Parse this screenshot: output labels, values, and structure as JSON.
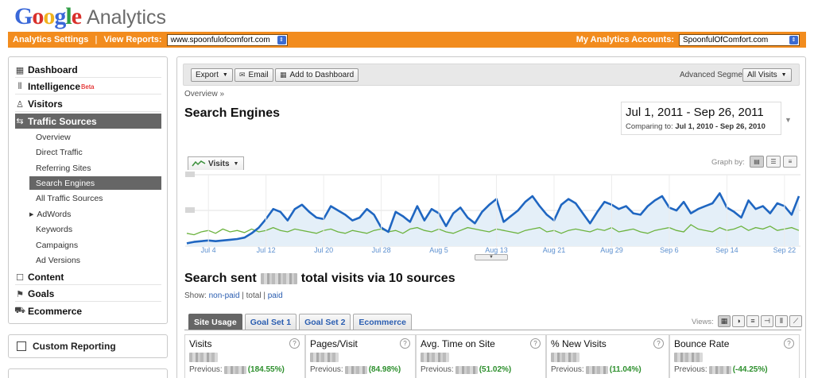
{
  "header": {
    "logo_google": [
      "G",
      "o",
      "o",
      "g",
      "l",
      "e"
    ],
    "logo_colors": [
      "#3a68d8",
      "#d9302b",
      "#f0b21e",
      "#3a68d8",
      "#2f9e44",
      "#d9302b"
    ],
    "logo_product": "Analytics",
    "analytics_settings": "Analytics Settings",
    "view_reports_label": "View Reports:",
    "view_reports_value": "www.spoonfulofcomfort.com",
    "accounts_label": "My Analytics Accounts:",
    "accounts_value": "SpoonfulOfComfort.com"
  },
  "sidebar": {
    "dashboard": "Dashboard",
    "intelligence": "Intelligence",
    "beta": "Beta",
    "visitors": "Visitors",
    "traffic_sources": "Traffic Sources",
    "sub_items": [
      "Overview",
      "Direct Traffic",
      "Referring Sites",
      "Search Engines",
      "All Traffic Sources",
      "AdWords",
      "Keywords",
      "Campaigns",
      "Ad Versions"
    ],
    "content": "Content",
    "goals": "Goals",
    "ecommerce": "Ecommerce",
    "custom_reporting": "Custom Reporting"
  },
  "toolbar": {
    "export": "Export",
    "email": "Email",
    "add_dashboard": "Add to Dashboard",
    "segments_label": "Advanced Segments:",
    "segments_value": "All Visits"
  },
  "report": {
    "breadcrumb": "Overview »",
    "title": "Search Engines",
    "date_range": "Jul 1, 2011 - Sep 26, 2011",
    "comparing_label": "Comparing to:",
    "comparing_range": "Jul 1, 2010 - Sep 26, 2010",
    "graph_metric": "Visits",
    "graph_by": "Graph by:",
    "headline_pre": "Search sent",
    "headline_post": "total visits via 10 sources",
    "show_label": "Show:",
    "show_nonpaid": "non-paid",
    "show_total": "total",
    "show_paid": "paid",
    "views_label": "Views:"
  },
  "tabs": [
    "Site Usage",
    "Goal Set 1",
    "Goal Set 2",
    "Ecommerce"
  ],
  "metrics": [
    {
      "name": "Visits",
      "prev_label": "Previous:",
      "pct": "(184.55%)"
    },
    {
      "name": "Pages/Visit",
      "prev_label": "Previous:",
      "pct": "(84.98%)"
    },
    {
      "name": "Avg. Time on Site",
      "prev_label": "Previous:",
      "pct": "(51.02%)"
    },
    {
      "name": "% New Visits",
      "prev_label": "Previous:",
      "pct": "(11.04%)"
    },
    {
      "name": "Bounce Rate",
      "prev_label": "Previous:",
      "pct": "(-44.25%)"
    }
  ],
  "chart_data": {
    "type": "line",
    "x_tick_labels": [
      "Jul 4",
      "Jul 12",
      "Jul 20",
      "Jul 28",
      "Aug 5",
      "Aug 13",
      "Aug 21",
      "Aug 29",
      "Sep 6",
      "Sep 14",
      "Sep 22"
    ],
    "x_tick_day_index": [
      3,
      11,
      19,
      27,
      35,
      43,
      51,
      59,
      67,
      75,
      83
    ],
    "ylim": [
      0,
      100
    ],
    "grid": true,
    "y_axis_labels_hidden": true,
    "series": [
      {
        "name": "Visits",
        "color": "#1f66c1",
        "fill": "#e4eff8",
        "values": [
          4,
          6,
          7,
          8,
          7,
          8,
          9,
          10,
          12,
          18,
          26,
          38,
          52,
          48,
          36,
          52,
          58,
          48,
          40,
          38,
          56,
          50,
          44,
          36,
          40,
          52,
          44,
          26,
          20,
          48,
          42,
          34,
          56,
          36,
          52,
          46,
          28,
          46,
          54,
          40,
          32,
          48,
          58,
          66,
          34,
          42,
          50,
          62,
          70,
          56,
          44,
          36,
          58,
          66,
          60,
          46,
          32,
          48,
          62,
          58,
          52,
          56,
          46,
          44,
          56,
          64,
          70,
          54,
          50,
          62,
          46,
          52,
          56,
          60,
          74,
          54,
          48,
          40,
          64,
          52,
          56,
          46,
          60,
          56,
          44,
          70
        ]
      },
      {
        "name": "Previous",
        "color": "#6cb33e",
        "values": [
          18,
          16,
          20,
          22,
          18,
          24,
          20,
          22,
          19,
          24,
          20,
          22,
          26,
          22,
          20,
          24,
          22,
          20,
          18,
          22,
          24,
          20,
          18,
          22,
          20,
          18,
          22,
          24,
          20,
          22,
          18,
          24,
          26,
          22,
          20,
          24,
          20,
          18,
          22,
          26,
          24,
          22,
          20,
          24,
          22,
          20,
          18,
          22,
          24,
          26,
          20,
          22,
          18,
          22,
          24,
          22,
          20,
          24,
          22,
          26,
          20,
          22,
          24,
          20,
          18,
          22,
          24,
          26,
          22,
          20,
          30,
          24,
          22,
          20,
          26,
          22,
          24,
          28,
          22,
          26,
          24,
          28,
          22,
          24,
          26,
          22
        ]
      }
    ]
  }
}
